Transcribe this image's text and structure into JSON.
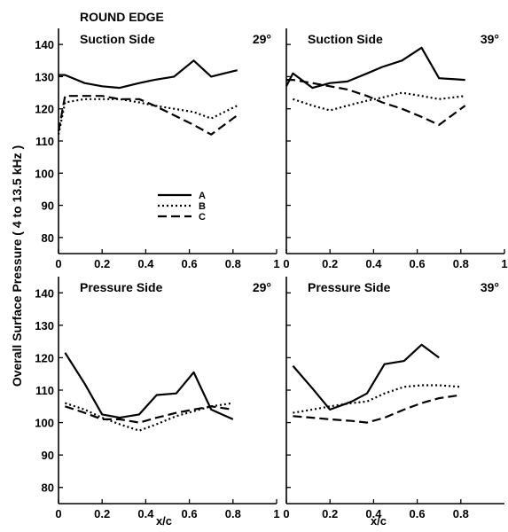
{
  "figure": {
    "title": "ROUND EDGE",
    "ylabel": "Overall Surface Pressure ( 4 to 13.5 kHz )",
    "xlabel": "x/c",
    "x_ticks": [
      "0",
      "0.2",
      "0.4",
      "0.6",
      "0.8",
      "1"
    ],
    "x_ticks_right": [
      "0",
      "0.2",
      "0.4",
      "0.6",
      "0.8"
    ],
    "y_ticks": [
      "80",
      "90",
      "100",
      "110",
      "120",
      "130",
      "140"
    ]
  },
  "chart_data": [
    {
      "type": "line",
      "title": "Suction Side",
      "angle": "29°",
      "xlim": [
        0,
        1
      ],
      "ylim": [
        75,
        145
      ],
      "legend": {
        "position": "center",
        "entries": [
          "A",
          "B",
          "C"
        ]
      },
      "series": [
        {
          "name": "A",
          "style": "solid",
          "x": [
            0,
            0.03,
            0.12,
            0.2,
            0.28,
            0.37,
            0.44,
            0.53,
            0.62,
            0.7,
            0.82
          ],
          "y": [
            130.5,
            130.5,
            128,
            127,
            126.5,
            128,
            129,
            130,
            135,
            130,
            132
          ]
        },
        {
          "name": "B",
          "style": "dotted",
          "x": [
            0,
            0.03,
            0.12,
            0.2,
            0.28,
            0.37,
            0.44,
            0.53,
            0.62,
            0.7,
            0.82
          ],
          "y": [
            112,
            122,
            123,
            123,
            123,
            122,
            121,
            120,
            119,
            117,
            121
          ]
        },
        {
          "name": "C",
          "style": "dashed",
          "x": [
            0,
            0.03,
            0.12,
            0.2,
            0.28,
            0.37,
            0.44,
            0.53,
            0.62,
            0.7,
            0.82
          ],
          "y": [
            113,
            124,
            124,
            124,
            123,
            123,
            121,
            118,
            115,
            112,
            118
          ]
        }
      ]
    },
    {
      "type": "line",
      "title": "Suction Side",
      "angle": "39°",
      "xlim": [
        0,
        1
      ],
      "ylim": [
        75,
        145
      ],
      "series": [
        {
          "name": "A",
          "style": "solid",
          "x": [
            0,
            0.03,
            0.12,
            0.2,
            0.28,
            0.37,
            0.44,
            0.53,
            0.62,
            0.7,
            0.82
          ],
          "y": [
            127,
            131,
            126.5,
            128,
            128.5,
            131,
            133,
            135,
            139,
            129.5,
            129
          ]
        },
        {
          "name": "B",
          "style": "dotted",
          "x": [
            0.03,
            0.12,
            0.2,
            0.28,
            0.37,
            0.44,
            0.53,
            0.62,
            0.7,
            0.82
          ],
          "y": [
            123,
            121,
            119.5,
            121,
            122.5,
            123.5,
            125,
            124,
            123,
            124
          ]
        },
        {
          "name": "C",
          "style": "dashed",
          "x": [
            0,
            0.03,
            0.12,
            0.2,
            0.28,
            0.37,
            0.44,
            0.53,
            0.62,
            0.7,
            0.82
          ],
          "y": [
            129,
            129,
            128,
            127,
            126,
            124,
            122,
            120,
            117.5,
            115,
            121
          ]
        }
      ]
    },
    {
      "type": "line",
      "title": "Pressure Side",
      "angle": "29°",
      "xlim": [
        0,
        1
      ],
      "ylim": [
        75,
        145
      ],
      "series": [
        {
          "name": "A",
          "style": "solid",
          "x": [
            0.03,
            0.12,
            0.2,
            0.28,
            0.37,
            0.45,
            0.54,
            0.62,
            0.7,
            0.8
          ],
          "y": [
            121.5,
            112,
            102.5,
            101.5,
            102.5,
            108.5,
            109,
            115.5,
            104,
            101
          ]
        },
        {
          "name": "B",
          "style": "dotted",
          "x": [
            0.03,
            0.12,
            0.2,
            0.28,
            0.37,
            0.45,
            0.54,
            0.62,
            0.7,
            0.8
          ],
          "y": [
            106,
            104,
            101.5,
            99.5,
            97.5,
            99.5,
            102,
            103.5,
            105,
            106
          ]
        },
        {
          "name": "C",
          "style": "dashed",
          "x": [
            0.03,
            0.12,
            0.2,
            0.28,
            0.37,
            0.45,
            0.54,
            0.62,
            0.7,
            0.8
          ],
          "y": [
            105,
            103,
            101,
            101,
            100,
            101.5,
            103,
            104,
            105,
            104
          ]
        }
      ]
    },
    {
      "type": "line",
      "title": "Pressure Side",
      "angle": "39°",
      "xlim": [
        0,
        1
      ],
      "ylim": [
        75,
        145
      ],
      "series": [
        {
          "name": "A",
          "style": "solid",
          "x": [
            0.03,
            0.12,
            0.2,
            0.3,
            0.37,
            0.45,
            0.54,
            0.62,
            0.7
          ],
          "y": [
            117.5,
            110.5,
            104,
            106.5,
            109,
            118,
            119,
            124,
            120
          ]
        },
        {
          "name": "B",
          "style": "dotted",
          "x": [
            0.03,
            0.12,
            0.2,
            0.3,
            0.37,
            0.45,
            0.54,
            0.62,
            0.7,
            0.8
          ],
          "y": [
            103,
            104,
            105,
            106,
            106.5,
            109,
            111,
            111.5,
            111.5,
            111
          ]
        },
        {
          "name": "C",
          "style": "dashed",
          "x": [
            0.03,
            0.12,
            0.2,
            0.3,
            0.37,
            0.45,
            0.54,
            0.62,
            0.7,
            0.8
          ],
          "y": [
            102,
            101.5,
            101,
            100.5,
            100,
            101.5,
            104,
            106,
            107.5,
            108.5
          ]
        }
      ]
    }
  ]
}
